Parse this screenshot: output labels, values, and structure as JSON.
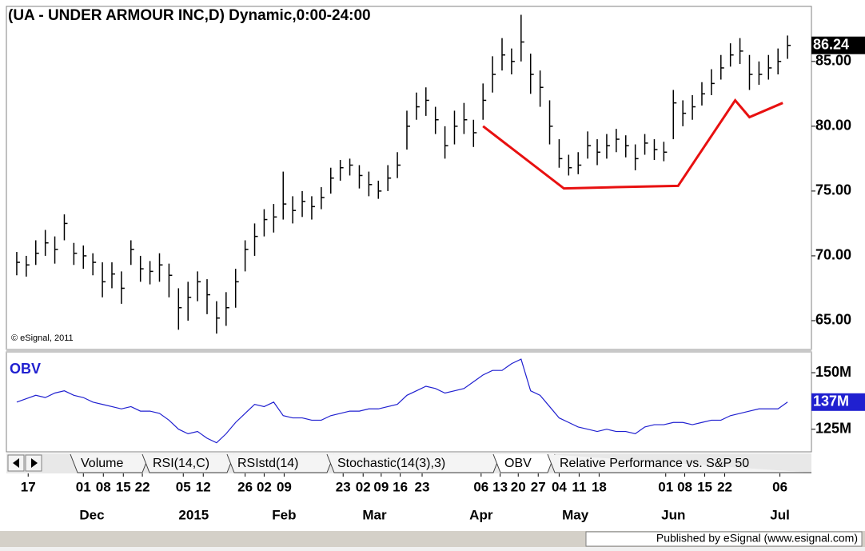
{
  "chart_data": [
    {
      "type": "ohlc",
      "title": "(UA - UNDER ARMOUR INC,D) Dynamic,0:00-24:00",
      "watermark": "© eSignal, 2011",
      "color": "#000000",
      "high": [
        70.3,
        70,
        71.2,
        72,
        71.5,
        73.2,
        71,
        70.8,
        70.2,
        69.5,
        69.5,
        68.8,
        71.2,
        70,
        69.6,
        70.2,
        69.4,
        67.5,
        68,
        68.8,
        68.2,
        66.5,
        67.2,
        69,
        71.2,
        72.5,
        73.6,
        74,
        76.5,
        74.6,
        75,
        74.6,
        75.3,
        76.8,
        77.4,
        77.5,
        77,
        76.5,
        75.8,
        77,
        78,
        81.2,
        82.6,
        83,
        81.5,
        80,
        81.2,
        81.8,
        80.5,
        83.3,
        85.4,
        86.8,
        86,
        88.6,
        85.6,
        84.3,
        82,
        79,
        77.8,
        78,
        79.6,
        79,
        79.4,
        79.8,
        79.3,
        78.6,
        79.4,
        79,
        78.8,
        82.8,
        82,
        82.4,
        83.4,
        84.4,
        85.5,
        86.4,
        86.8,
        85.5,
        85,
        85.5,
        86,
        87
      ],
      "low": [
        68.5,
        68.4,
        69.3,
        70,
        69.4,
        71.2,
        69.3,
        69,
        68.5,
        66.8,
        67.5,
        66.3,
        69.3,
        68,
        67.8,
        68,
        66.8,
        64.3,
        65,
        66.5,
        65.5,
        64,
        64.6,
        66,
        68.8,
        70,
        71.5,
        71.8,
        72.8,
        72.5,
        73,
        72.8,
        73.6,
        74.8,
        75.8,
        76.2,
        75.2,
        74.6,
        74.4,
        75,
        76,
        78.2,
        80.5,
        80.8,
        79.4,
        77.5,
        78.6,
        79.4,
        78.4,
        80.5,
        82.6,
        84.3,
        84,
        85,
        82.5,
        81.5,
        78.6,
        76.8,
        76.2,
        76.3,
        77.5,
        77,
        77.5,
        78,
        77.6,
        76.6,
        77.8,
        77.4,
        77.3,
        79,
        80,
        80.5,
        81.6,
        82.4,
        83.6,
        84.6,
        84.8,
        82.8,
        83.2,
        83.6,
        84,
        85.2
      ],
      "close": [
        69.5,
        69.3,
        70.2,
        71,
        70.5,
        72.5,
        70.2,
        70,
        69.5,
        68,
        68.6,
        67.5,
        70.5,
        69,
        68.8,
        69.3,
        68.5,
        66,
        66.8,
        68,
        67,
        65.2,
        66,
        68,
        70.5,
        71.5,
        72.8,
        73,
        74,
        73.5,
        74.2,
        73.8,
        74.5,
        76,
        76.8,
        77,
        76.2,
        75.5,
        75,
        76,
        77,
        80,
        81.5,
        82,
        80.5,
        78.5,
        80,
        80.5,
        79.5,
        82,
        84,
        85.5,
        85,
        86.5,
        84,
        83,
        80,
        77.5,
        76.8,
        77,
        78.5,
        78,
        78.5,
        79,
        78.5,
        77.5,
        78.7,
        78.2,
        78,
        81.8,
        81,
        81.5,
        82.5,
        83.3,
        84.5,
        85.5,
        85.8,
        84,
        84,
        84.5,
        85,
        86.24
      ],
      "overlay": {
        "color": "#e81010",
        "x": [
          49,
          57.5,
          63,
          69.5,
          75.5,
          77,
          80.5
        ],
        "values": [
          80.0,
          75.2,
          75.3,
          75.4,
          82.0,
          80.7,
          81.8
        ]
      },
      "xlim": [
        -0.5,
        82
      ],
      "ylim": [
        62.9,
        89.0
      ],
      "yticks": [
        {
          "value": 85,
          "label": "85.00"
        },
        {
          "value": 80,
          "label": "80.00"
        },
        {
          "value": 75,
          "label": "75.00"
        },
        {
          "value": 70,
          "label": "70.00"
        },
        {
          "value": 65,
          "label": "65.00"
        }
      ],
      "xticks": [
        {
          "value": 1.2,
          "label": "17"
        },
        {
          "value": 7,
          "label": "01"
        },
        {
          "value": 9.1,
          "label": "08"
        },
        {
          "value": 11.2,
          "label": "15"
        },
        {
          "value": 13.2,
          "label": "22"
        },
        {
          "value": 17.5,
          "label": "05"
        },
        {
          "value": 19.6,
          "label": "12"
        },
        {
          "value": 24,
          "label": "26"
        },
        {
          "value": 26,
          "label": "02"
        },
        {
          "value": 28.1,
          "label": "09"
        },
        {
          "value": 34.3,
          "label": "23"
        },
        {
          "value": 36.4,
          "label": "02"
        },
        {
          "value": 38.3,
          "label": "09"
        },
        {
          "value": 40.3,
          "label": "16"
        },
        {
          "value": 42.6,
          "label": "23"
        },
        {
          "value": 48.8,
          "label": "06"
        },
        {
          "value": 50.8,
          "label": "13"
        },
        {
          "value": 52.7,
          "label": "20"
        },
        {
          "value": 54.8,
          "label": "27"
        },
        {
          "value": 57,
          "label": "04"
        },
        {
          "value": 59.1,
          "label": "11"
        },
        {
          "value": 61.2,
          "label": "18"
        },
        {
          "value": 68.2,
          "label": "01"
        },
        {
          "value": 70.2,
          "label": "08"
        },
        {
          "value": 72.3,
          "label": "15"
        },
        {
          "value": 74.4,
          "label": "22"
        },
        {
          "value": 80.2,
          "label": "06"
        }
      ],
      "xmonths": [
        {
          "value": 7.9,
          "label": "Dec"
        },
        {
          "value": 18.6,
          "label": "2015"
        },
        {
          "value": 28.1,
          "label": "Feb"
        },
        {
          "value": 37.6,
          "label": "Mar"
        },
        {
          "value": 48.8,
          "label": "Apr"
        },
        {
          "value": 58.7,
          "label": "May"
        },
        {
          "value": 69,
          "label": "Jun"
        },
        {
          "value": 80.2,
          "label": "Jul"
        }
      ]
    },
    {
      "type": "line",
      "title": "OBV",
      "color": "#2020d0",
      "values": [
        137,
        138.5,
        140,
        139,
        141,
        142,
        140,
        139,
        137,
        136,
        135,
        134,
        135,
        133,
        133,
        132,
        129,
        125,
        123,
        124,
        121,
        119,
        123,
        128,
        132,
        136,
        135,
        137,
        131,
        130,
        130,
        129,
        129,
        131,
        132,
        133,
        133,
        134,
        134,
        135,
        136,
        140,
        142,
        144,
        143,
        141,
        142,
        143,
        146,
        149,
        151,
        151,
        154,
        156,
        142,
        140,
        135,
        130,
        128,
        126,
        125,
        124,
        125,
        124,
        124,
        123,
        126,
        127,
        127,
        128,
        128,
        127,
        128,
        129,
        129,
        131,
        132,
        133,
        134,
        134,
        134,
        137
      ],
      "last_label": "137M",
      "ylim": [
        115,
        158.5
      ],
      "yticks": [
        {
          "value": 150,
          "label": "150M"
        },
        {
          "value": 125,
          "label": "125M"
        }
      ]
    }
  ],
  "tabs": [
    "Volume",
    "RSI(14,C)",
    "RSIstd(14)",
    "Stochastic(14(3),3)",
    "OBV",
    "Relative Performance vs. S&P 50"
  ],
  "footer": "Published by eSignal (www.esignal.com)"
}
